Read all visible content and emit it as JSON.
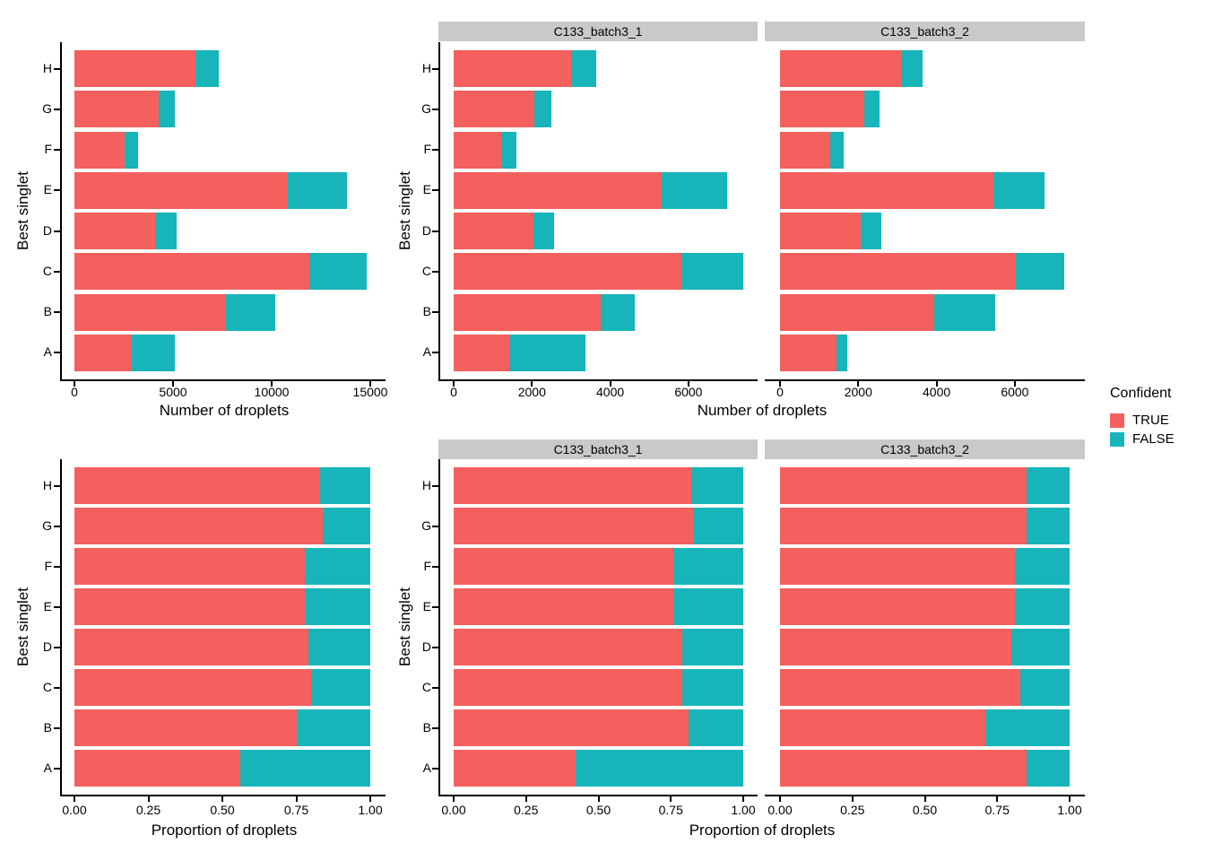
{
  "figure": {
    "background": "#FFFFFF",
    "colors": {
      "true": "#F4605D",
      "false": "#17B5BA",
      "strip_bg": "#C9C9C9",
      "axis": "#000000"
    },
    "legend": {
      "title": "Confident",
      "items": [
        {
          "label": "TRUE",
          "color_key": "true"
        },
        {
          "label": "FALSE",
          "color_key": "false"
        }
      ]
    }
  },
  "chart_data": [
    {
      "id": "counts-overall",
      "type": "bar",
      "orientation": "horizontal",
      "stacked": true,
      "xlabel": "Number of droplets",
      "ylabel": "Best singlet",
      "categories": [
        "H",
        "G",
        "F",
        "E",
        "D",
        "C",
        "B",
        "A"
      ],
      "x_ticks": [
        0,
        5000,
        10000,
        15000
      ],
      "x_tick_labels": [
        "0",
        "5000",
        "10000",
        "15000"
      ],
      "xlim": [
        0,
        15000
      ],
      "legend_title": "Confident",
      "facets": [
        {
          "label": null,
          "series": [
            {
              "name": "TRUE",
              "values": [
                6150,
                4270,
                2550,
                10800,
                4100,
                11900,
                7700,
                2900
              ]
            },
            {
              "name": "FALSE",
              "values": [
                1150,
                830,
                700,
                3000,
                1100,
                2900,
                2500,
                2200
              ]
            }
          ]
        }
      ]
    },
    {
      "id": "counts-by-sample",
      "type": "bar",
      "orientation": "horizontal",
      "stacked": true,
      "xlabel": "Number of droplets",
      "ylabel": "Best singlet",
      "categories": [
        "H",
        "G",
        "F",
        "E",
        "D",
        "C",
        "B",
        "A"
      ],
      "x_ticks": [
        0,
        2000,
        4000,
        6000
      ],
      "x_tick_labels": [
        "0",
        "2000",
        "4000",
        "6000"
      ],
      "xlim": [
        0,
        7500
      ],
      "legend_title": "Confident",
      "facets": [
        {
          "label": "C133_batch3_1",
          "series": [
            {
              "name": "TRUE",
              "values": [
                2990,
                2070,
                1220,
                5310,
                2040,
                5830,
                3760,
                1420
              ]
            },
            {
              "name": "FALSE",
              "values": [
                660,
                420,
                375,
                1680,
                520,
                1580,
                870,
                1950
              ]
            }
          ]
        },
        {
          "label": "C133_batch3_2",
          "series": [
            {
              "name": "TRUE",
              "values": [
                3100,
                2160,
                1290,
                5450,
                2060,
                6020,
                3930,
                1440
              ]
            },
            {
              "name": "FALSE",
              "values": [
                550,
                385,
                330,
                1310,
                535,
                1250,
                1580,
                270
              ]
            }
          ]
        }
      ]
    },
    {
      "id": "proportions-overall",
      "type": "bar",
      "orientation": "horizontal",
      "stacked": true,
      "xlabel": "Proportion of droplets",
      "ylabel": "Best singlet",
      "categories": [
        "H",
        "G",
        "F",
        "E",
        "D",
        "C",
        "B",
        "A"
      ],
      "x_ticks": [
        0,
        0.25,
        0.5,
        0.75,
        1.0
      ],
      "x_tick_labels": [
        "0.00",
        "0.25",
        "0.50",
        "0.75",
        "1.00"
      ],
      "xlim": [
        0,
        1.0
      ],
      "legend_title": "Confident",
      "facets": [
        {
          "label": null,
          "series": [
            {
              "name": "TRUE",
              "values": [
                0.83,
                0.84,
                0.78,
                0.78,
                0.79,
                0.8,
                0.75,
                0.56
              ]
            },
            {
              "name": "FALSE",
              "values": [
                0.17,
                0.16,
                0.22,
                0.22,
                0.21,
                0.2,
                0.25,
                0.44
              ]
            }
          ]
        }
      ]
    },
    {
      "id": "proportions-by-sample",
      "type": "bar",
      "orientation": "horizontal",
      "stacked": true,
      "xlabel": "Proportion of droplets",
      "ylabel": "Best singlet",
      "categories": [
        "H",
        "G",
        "F",
        "E",
        "D",
        "C",
        "B",
        "A"
      ],
      "x_ticks": [
        0,
        0.25,
        0.5,
        0.75,
        1.0
      ],
      "x_tick_labels": [
        "0.00",
        "0.25",
        "0.50",
        "0.75",
        "1.00"
      ],
      "xlim": [
        0,
        1.0
      ],
      "legend_title": "Confident",
      "facets": [
        {
          "label": "C133_batch3_1",
          "series": [
            {
              "name": "TRUE",
              "values": [
                0.82,
                0.83,
                0.76,
                0.76,
                0.79,
                0.79,
                0.81,
                0.42
              ]
            },
            {
              "name": "FALSE",
              "values": [
                0.18,
                0.17,
                0.24,
                0.24,
                0.21,
                0.21,
                0.19,
                0.58
              ]
            }
          ]
        },
        {
          "label": "C133_batch3_2",
          "series": [
            {
              "name": "TRUE",
              "values": [
                0.85,
                0.85,
                0.81,
                0.81,
                0.8,
                0.83,
                0.71,
                0.85
              ]
            },
            {
              "name": "FALSE",
              "values": [
                0.15,
                0.15,
                0.19,
                0.19,
                0.2,
                0.17,
                0.29,
                0.15
              ]
            }
          ]
        }
      ]
    }
  ]
}
